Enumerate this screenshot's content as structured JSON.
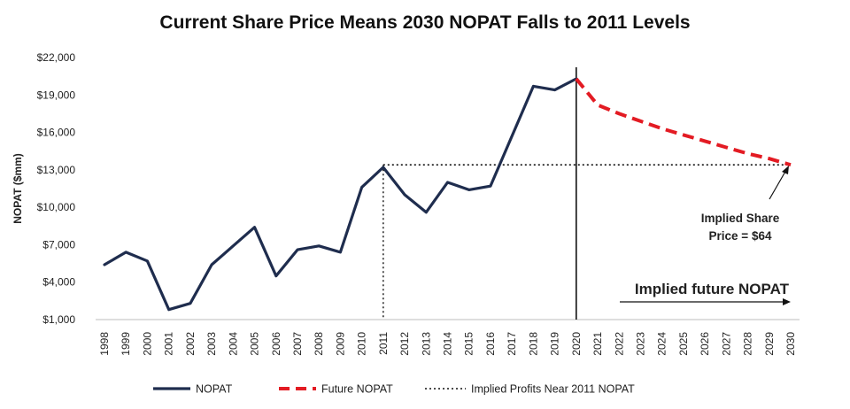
{
  "chart_data": {
    "type": "line",
    "title": "Current Share Price Means 2030 NOPAT Falls to 2011 Levels",
    "ylabel": "NOPAT ($mm)",
    "xlabel": "",
    "ylim": [
      1000,
      22000
    ],
    "yticks": [
      1000,
      4000,
      7000,
      10000,
      13000,
      16000,
      19000,
      22000
    ],
    "ytick_labels": [
      "$1,000",
      "$4,000",
      "$7,000",
      "$10,000",
      "$13,000",
      "$16,000",
      "$19,000",
      "$22,000"
    ],
    "categories": [
      "1998",
      "1999",
      "2000",
      "2001",
      "2002",
      "2003",
      "2004",
      "2005",
      "2006",
      "2007",
      "2008",
      "2009",
      "2010",
      "2011",
      "2012",
      "2013",
      "2014",
      "2015",
      "2016",
      "2017",
      "2018",
      "2019",
      "2020",
      "2021",
      "2022",
      "2023",
      "2024",
      "2025",
      "2026",
      "2027",
      "2028",
      "2029",
      "2030"
    ],
    "series": [
      {
        "name": "NOPAT",
        "style": "solid",
        "color": "#1f2d4e",
        "x": [
          "1998",
          "1999",
          "2000",
          "2001",
          "2002",
          "2003",
          "2004",
          "2005",
          "2006",
          "2007",
          "2008",
          "2009",
          "2010",
          "2011",
          "2012",
          "2013",
          "2014",
          "2015",
          "2016",
          "2017",
          "2018",
          "2019",
          "2020"
        ],
        "values": [
          5400,
          6400,
          5700,
          1800,
          2300,
          5400,
          6900,
          8400,
          4500,
          6600,
          6900,
          6400,
          11600,
          13200,
          11000,
          9600,
          12000,
          11400,
          11700,
          15700,
          19700,
          19400,
          20300
        ]
      },
      {
        "name": "Future NOPAT",
        "style": "dashed",
        "color": "#e31b23",
        "x": [
          "2020",
          "2021",
          "2022",
          "2023",
          "2024",
          "2025",
          "2026",
          "2027",
          "2028",
          "2029",
          "2030"
        ],
        "values": [
          20300,
          18200,
          17500,
          16900,
          16300,
          15800,
          15300,
          14800,
          14300,
          13900,
          13400
        ]
      },
      {
        "name": "Implied Profits Near 2011 NOPAT",
        "style": "dotted",
        "color": "#111111",
        "x": [
          "2011",
          "2030"
        ],
        "values": [
          13400,
          13400
        ]
      }
    ],
    "drop_line_x": "2011",
    "divider_x": "2020",
    "annotations": {
      "share_price_line1": "Implied Share",
      "share_price_line2": "Price = $64",
      "future_label": "Implied future NOPAT"
    },
    "legend": [
      {
        "label": "NOPAT",
        "style": "solid",
        "color": "#1f2d4e"
      },
      {
        "label": "Future NOPAT",
        "style": "dashed",
        "color": "#e31b23"
      },
      {
        "label": "Implied Profits Near 2011 NOPAT",
        "style": "dotted",
        "color": "#111111"
      }
    ],
    "legend_position": "bottom-center"
  }
}
